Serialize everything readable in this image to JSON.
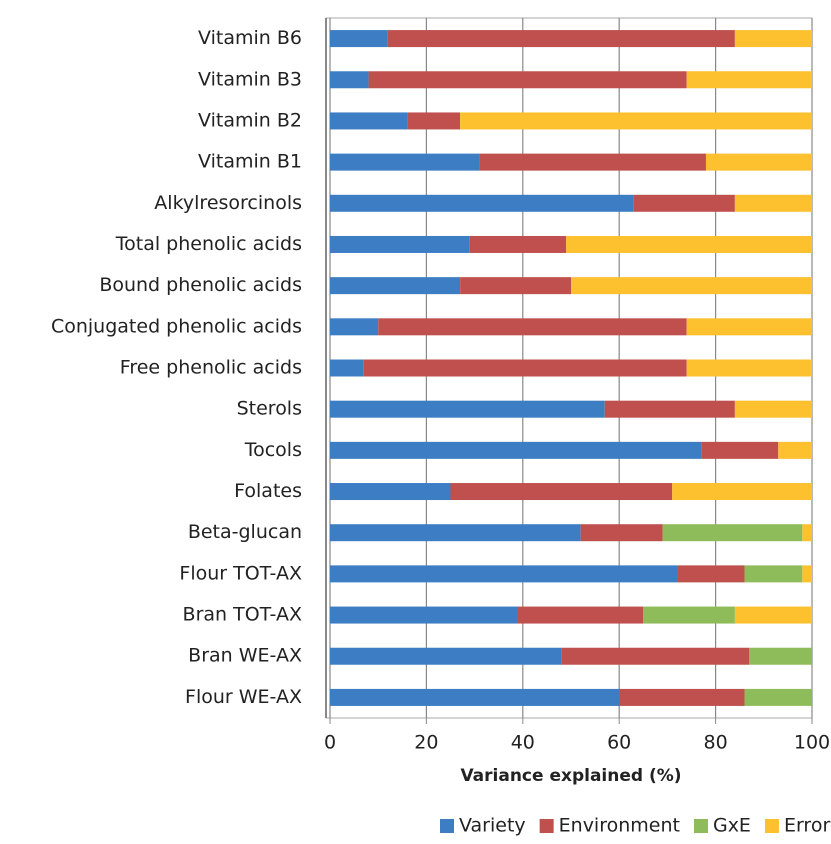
{
  "chart_data": {
    "type": "stacked-bar-horizontal",
    "x_label": "Variance explained (%)",
    "categories": [
      "Vitamin B6",
      "Vitamin B3",
      "Vitamin B2",
      "Vitamin B1",
      "Alkylresorcinols",
      "Total phenolic acids",
      "Bound phenolic acids",
      "Conjugated phenolic acids",
      "Free phenolic acids",
      "Sterols",
      "Tocols",
      "Folates",
      "Beta-glucan",
      "Flour TOT-AX",
      "Bran TOT-AX",
      "Bran WE-AX",
      "Flour WE-AX"
    ],
    "series": [
      {
        "name": "Variety",
        "color": "#3c7dc4",
        "values": [
          12,
          8,
          16,
          31,
          63,
          29,
          27,
          10,
          7,
          57,
          77,
          25,
          52,
          72,
          39,
          48,
          60
        ]
      },
      {
        "name": "Environment",
        "color": "#c0504d",
        "values": [
          72,
          66,
          11,
          47,
          21,
          20,
          23,
          64,
          67,
          27,
          16,
          46,
          17,
          14,
          26,
          39,
          26
        ]
      },
      {
        "name": "GxE",
        "color": "#8fbc5a",
        "values": [
          0,
          0,
          0,
          0,
          0,
          0,
          0,
          0,
          0,
          0,
          0,
          0,
          29,
          12,
          19,
          13,
          14
        ]
      },
      {
        "name": "Error",
        "color": "#fdc02f",
        "values": [
          16,
          26,
          73,
          22,
          16,
          51,
          50,
          26,
          26,
          16,
          7,
          29,
          2,
          2,
          16,
          0,
          0
        ]
      }
    ],
    "xlim": [
      0,
      100
    ],
    "xticks": [
      0,
      20,
      40,
      60,
      80,
      100
    ],
    "grid": true
  }
}
